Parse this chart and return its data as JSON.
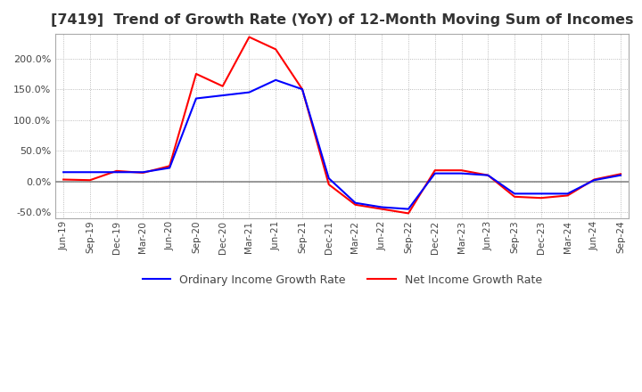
{
  "title": "[7419]  Trend of Growth Rate (YoY) of 12-Month Moving Sum of Incomes",
  "title_fontsize": 11.5,
  "legend_labels": [
    "Ordinary Income Growth Rate",
    "Net Income Growth Rate"
  ],
  "legend_colors": [
    "#0000FF",
    "#FF0000"
  ],
  "ylim": [
    -60,
    240
  ],
  "yticks": [
    -50,
    0,
    50,
    100,
    150,
    200
  ],
  "xtick_labels": [
    "Jun-19",
    "Sep-19",
    "Dec-19",
    "Mar-20",
    "Jun-20",
    "Sep-20",
    "Dec-20",
    "Mar-21",
    "Jun-21",
    "Sep-21",
    "Dec-21",
    "Mar-22",
    "Jun-22",
    "Sep-22",
    "Dec-22",
    "Mar-23",
    "Jun-23",
    "Sep-23",
    "Dec-23",
    "Mar-24",
    "Jun-24",
    "Sep-24"
  ],
  "ordinary_income": [
    15,
    15,
    15,
    15,
    22,
    135,
    140,
    145,
    165,
    150,
    5,
    -35,
    -42,
    -45,
    13,
    13,
    10,
    -20,
    -20,
    -20,
    2,
    10
  ],
  "net_income": [
    3,
    2,
    17,
    14,
    25,
    175,
    155,
    235,
    215,
    150,
    -5,
    -38,
    -45,
    -52,
    18,
    18,
    10,
    -25,
    -27,
    -23,
    3,
    12
  ],
  "background_color": "#FFFFFF",
  "grid_color": "#AAAAAA",
  "zero_line_color": "#888888",
  "plot_area_bg": "#FFFFFF"
}
